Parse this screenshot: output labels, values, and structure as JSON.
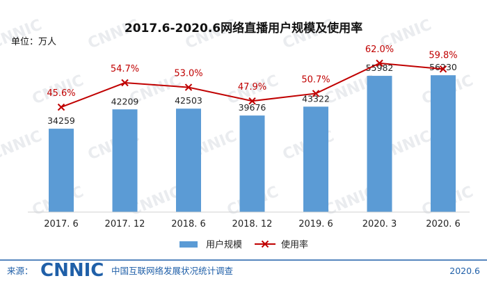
{
  "chart_data": {
    "type": "bar",
    "title": "2017.6-2020.6网络直播用户规模及使用率",
    "unit_label": "单位：万人",
    "categories": [
      "2017. 6",
      "2017. 12",
      "2018. 6",
      "2018. 12",
      "2019. 6",
      "2020. 3",
      "2020. 6"
    ],
    "ylim": [
      0,
      60000
    ],
    "grid": false,
    "legend_position": "bottom",
    "series": [
      {
        "name": "用户规模",
        "kind": "bar",
        "color": "#5b9bd5",
        "values": [
          34259,
          42209,
          42503,
          39676,
          43322,
          55982,
          56230
        ],
        "labels": [
          "34259",
          "42209",
          "42503",
          "39676",
          "43322",
          "55982",
          "56230"
        ]
      },
      {
        "name": "使用率",
        "kind": "line",
        "color": "#c00000",
        "values": [
          45.6,
          54.7,
          53.0,
          47.9,
          50.7,
          62.0,
          59.8
        ],
        "labels": [
          "45.6%",
          "54.7%",
          "53.0%",
          "47.9%",
          "50.7%",
          "62.0%",
          "59.8%"
        ],
        "ylim": [
          0,
          70
        ]
      }
    ]
  },
  "watermark": "CNNIC",
  "footer": {
    "source_label": "来源：",
    "logo_text": "CNNIC",
    "org_name": "中国互联网络发展状况统计调查",
    "date": "2020.6",
    "logo_color": "#1f5fa8",
    "text_color": "#1f5fa8"
  }
}
